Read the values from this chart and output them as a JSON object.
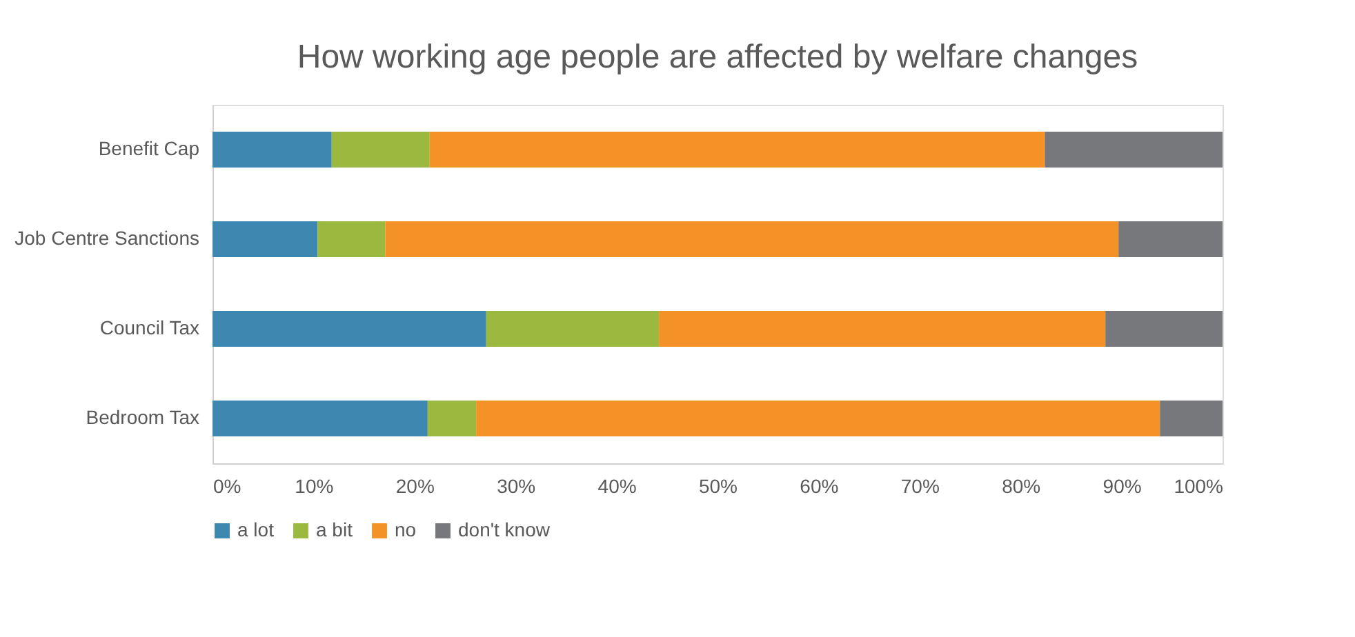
{
  "chart_data": {
    "type": "bar",
    "orientation": "horizontal",
    "stacked": true,
    "title": "How working age people are affected by welfare changes",
    "categories": [
      "Benefit Cap",
      "Job Centre Sanctions",
      "Council Tax",
      "Bedroom Tax"
    ],
    "series": [
      {
        "name": "a lot",
        "color": "#3e87b0",
        "values": [
          11.8,
          10.4,
          27.1,
          21.3
        ]
      },
      {
        "name": "a bit",
        "color": "#9bb83f",
        "values": [
          9.7,
          6.7,
          17.1,
          4.8
        ]
      },
      {
        "name": "no",
        "color": "#f59227",
        "values": [
          60.9,
          72.6,
          44.2,
          67.7
        ]
      },
      {
        "name": "don't know",
        "color": "#76787b",
        "values": [
          17.6,
          10.3,
          11.6,
          6.2
        ]
      }
    ],
    "xlim": [
      0,
      100
    ],
    "xticks": [
      {
        "value": 0,
        "label": "0%"
      },
      {
        "value": 10,
        "label": "10%"
      },
      {
        "value": 20,
        "label": "20%"
      },
      {
        "value": 30,
        "label": "30%"
      },
      {
        "value": 40,
        "label": "40%"
      },
      {
        "value": 50,
        "label": "50%"
      },
      {
        "value": 60,
        "label": "60%"
      },
      {
        "value": 70,
        "label": "70%"
      },
      {
        "value": 80,
        "label": "80%"
      },
      {
        "value": 90,
        "label": "90%"
      },
      {
        "value": 100,
        "label": "100%"
      }
    ],
    "grid": false,
    "legend": "bottom"
  }
}
